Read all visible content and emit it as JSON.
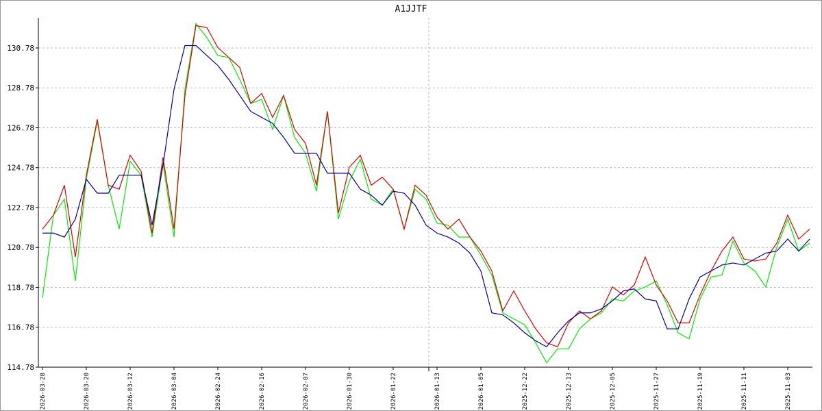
{
  "chart_data": {
    "type": "line",
    "title": "A1JJTF",
    "categories": [
      "2026-03-28",
      null,
      null,
      null,
      "2026-03-20",
      null,
      null,
      null,
      "2026-03-12",
      null,
      null,
      null,
      "2026-03-04",
      null,
      null,
      null,
      "2026-02-24",
      null,
      null,
      null,
      "2026-02-16",
      null,
      null,
      null,
      "2026-02-07",
      null,
      null,
      null,
      "2026-01-30",
      null,
      null,
      null,
      "2026-01-22",
      null,
      null,
      null,
      "2026-01-13",
      null,
      null,
      null,
      "2026-01-05",
      null,
      null,
      null,
      "2025-12-22",
      null,
      null,
      null,
      "2025-12-13",
      null,
      null,
      null,
      "2025-12-05",
      null,
      null,
      null,
      "2025-11-27",
      null,
      null,
      null,
      "2025-11-19",
      null,
      null,
      null,
      "2025-11-11",
      null,
      null,
      null,
      "2025-11-03",
      null,
      null
    ],
    "series": [
      {
        "color": "#00ee00",
        "values": [
          118.25,
          122.4,
          123.2,
          119.1,
          124.2,
          127.1,
          123.9,
          121.7,
          125.1,
          124.4,
          121.3,
          125.0,
          121.3,
          128.7,
          132.0,
          131.3,
          130.4,
          130.3,
          129.2,
          128.0,
          128.2,
          126.7,
          128.4,
          126.3,
          125.5,
          123.6,
          127.6,
          122.2,
          124.1,
          125.2,
          123.2,
          122.9,
          123.7,
          121.7,
          123.7,
          123.2,
          122.0,
          121.9,
          121.3,
          121.3,
          120.4,
          119.4,
          117.5,
          117.2,
          116.9,
          116.0,
          115.0,
          115.7,
          115.7,
          116.7,
          117.2,
          117.5,
          118.2,
          118.1,
          118.6,
          118.8,
          119.1,
          117.9,
          116.5,
          116.2,
          118.2,
          119.3,
          119.4,
          121.1,
          120.0,
          119.6,
          118.8,
          120.8,
          122.2,
          120.6,
          121.0
        ]
      },
      {
        "color": "#dd0000",
        "values": [
          121.7,
          122.4,
          123.9,
          120.3,
          124.4,
          127.2,
          123.9,
          123.7,
          125.4,
          124.6,
          121.5,
          125.3,
          121.7,
          128.4,
          131.9,
          131.8,
          130.8,
          130.3,
          129.8,
          128.0,
          128.5,
          127.3,
          128.4,
          126.7,
          126.0,
          123.9,
          127.6,
          122.5,
          124.8,
          125.4,
          123.9,
          124.3,
          123.7,
          121.7,
          123.9,
          123.4,
          122.3,
          121.7,
          122.2,
          121.3,
          120.6,
          119.6,
          117.6,
          118.6,
          117.6,
          116.7,
          116.0,
          115.8,
          117.0,
          117.6,
          117.2,
          117.6,
          118.8,
          118.4,
          118.9,
          120.3,
          118.9,
          118.1,
          117.0,
          117.0,
          118.4,
          119.6,
          120.6,
          121.3,
          120.2,
          120.1,
          120.2,
          121.0,
          122.4,
          121.2,
          121.7
        ]
      },
      {
        "color": "#000088",
        "values": [
          121.5,
          121.5,
          121.3,
          122.2,
          124.2,
          123.5,
          123.5,
          124.4,
          124.4,
          124.4,
          121.9,
          124.9,
          128.7,
          130.9,
          130.9,
          130.4,
          129.9,
          129.2,
          128.4,
          127.6,
          127.3,
          127.0,
          126.3,
          125.5,
          125.5,
          125.5,
          124.5,
          124.5,
          124.5,
          123.7,
          123.4,
          122.9,
          123.6,
          123.5,
          122.9,
          121.9,
          121.5,
          121.3,
          121.0,
          120.5,
          119.6,
          117.5,
          117.4,
          117.0,
          116.5,
          116.1,
          115.8,
          116.5,
          117.1,
          117.5,
          117.5,
          117.7,
          118.1,
          118.6,
          118.7,
          118.2,
          118.1,
          116.7,
          116.7,
          118.2,
          119.3,
          119.6,
          119.9,
          120.0,
          119.9,
          120.2,
          120.5,
          120.6,
          121.2,
          120.6,
          121.2
        ]
      }
    ],
    "ylim": [
      114.78,
      132.29
    ],
    "yticks": [
      114.78,
      116.78,
      118.78,
      120.78,
      122.78,
      124.78,
      126.78,
      128.78,
      130.78
    ],
    "grid": true
  }
}
